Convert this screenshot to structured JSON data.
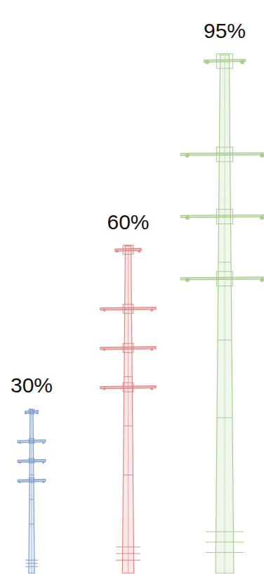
{
  "chart_data": {
    "type": "bar",
    "categories": [
      null,
      null,
      null
    ],
    "values": [
      30,
      60,
      95
    ],
    "value_labels": [
      "30%",
      "60%",
      "95%"
    ],
    "colors": [
      "#7f9fcf",
      "#e38585",
      "#a9cd8f"
    ],
    "ylim": [
      0,
      95
    ],
    "data_labels": true,
    "tick_labels": false
  }
}
